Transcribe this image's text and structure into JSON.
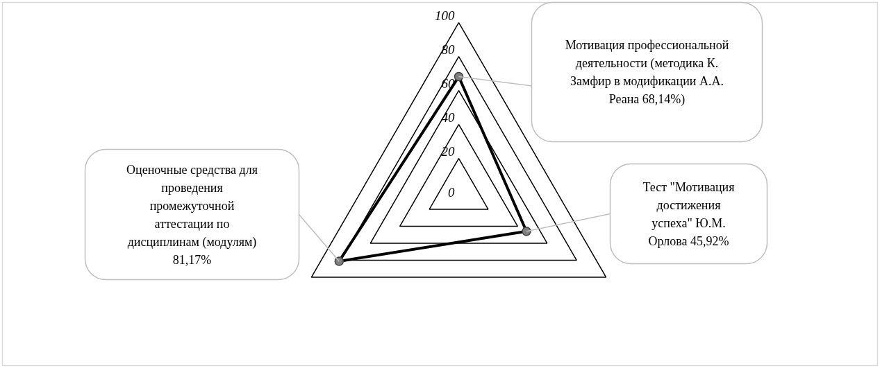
{
  "chart_data": {
    "type": "radar",
    "categories": [
      "Мотивация профессиональной деятельности (методика К. Замфир в модификации А.А. Реана 68,14%)",
      "Тест \"Мотивация достижения успеха\" Ю.М. Орлова 45,92%",
      "Оценочные средства для проведения промежуточной аттестации по дисциплинам (модулям) 81,17%"
    ],
    "series": [
      {
        "color": "#000000",
        "values": [
          68.14,
          45.92,
          81.17
        ]
      }
    ],
    "ylim": [
      0,
      100
    ],
    "yticks": [
      0,
      20,
      40,
      60,
      80,
      100
    ],
    "marker": "circle",
    "line_style": "solid",
    "grid": true
  }
}
